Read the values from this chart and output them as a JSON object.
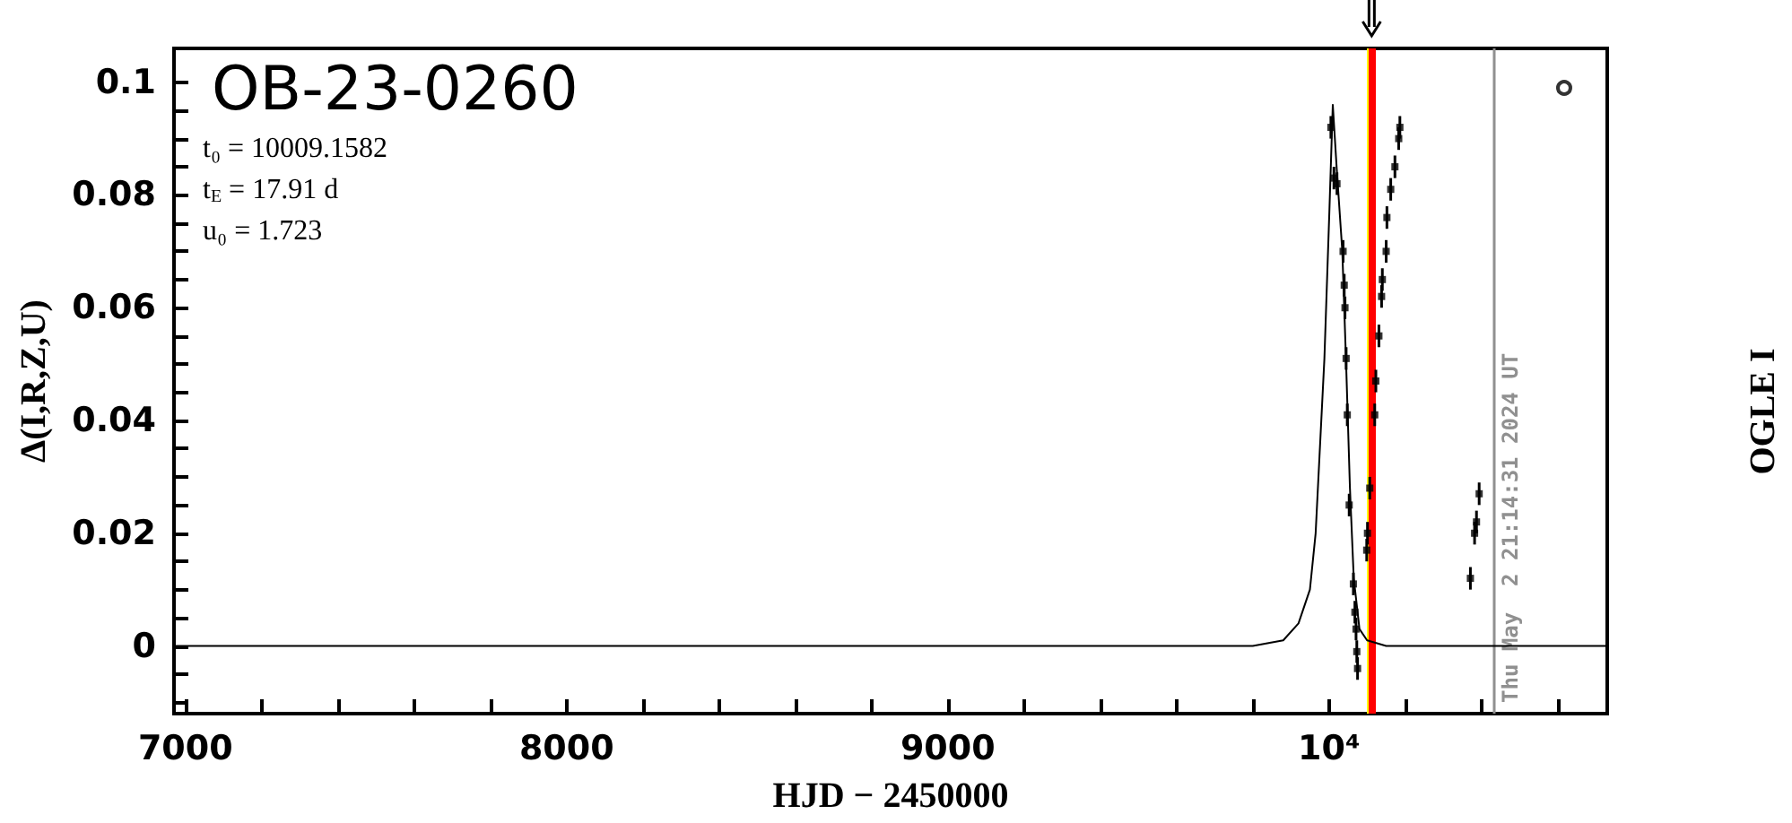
{
  "chart_data": {
    "type": "scatter",
    "title": "OB-23-0260",
    "xlabel": "HJD − 2450000",
    "ylabel": "Δ(I,R,Z,U)",
    "annotations": [
      "t₀ = 10009.1582",
      "t$_{E}$ = 17.91 d",
      "u₀ = 1.723",
      "OGLE I",
      "Thu May  2 21:14:31 2024 UT"
    ],
    "xlim": [
      6970,
      10730
    ],
    "ylim": [
      -0.012,
      0.106
    ],
    "xticks": [
      7000,
      {
        "value": 7200,
        "label": null
      },
      {
        "value": 7400,
        "label": null
      },
      {
        "value": 7600,
        "label": null
      },
      {
        "value": 7800,
        "label": null
      },
      8000,
      {
        "value": 8200,
        "label": null
      },
      {
        "value": 8400,
        "label": null
      },
      {
        "value": 8600,
        "label": null
      },
      {
        "value": 8800,
        "label": null
      },
      9000,
      {
        "value": 9200,
        "label": null
      },
      {
        "value": 9400,
        "label": null
      },
      {
        "value": 9600,
        "label": null
      },
      {
        "value": 9800,
        "label": null
      },
      {
        "value": 10000,
        "label": "10⁴"
      },
      {
        "value": 10200,
        "label": null
      },
      {
        "value": 10400,
        "label": null
      },
      {
        "value": 10600,
        "label": null
      }
    ],
    "yticks": [
      {
        "value": -0.01,
        "label": null
      },
      {
        "value": -0.005,
        "label": null
      },
      0,
      {
        "value": 0.005,
        "label": null
      },
      {
        "value": 0.01,
        "label": null
      },
      {
        "value": 0.015,
        "label": null
      },
      0.02,
      {
        "value": 0.025,
        "label": null
      },
      {
        "value": 0.03,
        "label": null
      },
      {
        "value": 0.035,
        "label": null
      },
      0.04,
      {
        "value": 0.045,
        "label": null
      },
      {
        "value": 0.05,
        "label": null
      },
      {
        "value": 0.055,
        "label": null
      },
      0.06,
      {
        "value": 0.065,
        "label": null
      },
      {
        "value": 0.07,
        "label": null
      },
      {
        "value": 0.075,
        "label": null
      },
      0.08,
      {
        "value": 0.085,
        "label": null
      },
      {
        "value": 0.09,
        "label": null
      },
      {
        "value": 0.095,
        "label": null
      },
      0.1
    ],
    "ref_lines": [
      {
        "axis": "x",
        "value": 10106,
        "color": "#ffff00"
      },
      {
        "axis": "x",
        "value": 10112,
        "color": "#ff0000"
      },
      {
        "axis": "x",
        "value": 10433.4,
        "color": "#909090"
      }
    ],
    "series": [
      {
        "type": "line",
        "color": "#000000",
        "marker": "none",
        "x": [
          6970,
          9800,
          9880,
          9920,
          9950,
          9965,
          9988,
          10001,
          10010,
          10020,
          10035,
          10045,
          10055,
          10065,
          10080,
          10100,
          10150,
          10730
        ],
        "values": [
          0,
          0,
          0.001,
          0.004,
          0.01,
          0.02,
          0.051,
          0.077,
          0.096,
          0.085,
          0.07,
          0.05,
          0.028,
          0.012,
          0.003,
          0.001,
          0,
          0
        ]
      },
      {
        "color": "#000000",
        "marker": "square",
        "x": [
          10005,
          10013,
          10021,
          10037,
          10040,
          10042,
          10045,
          10048,
          10053,
          10064,
          10068,
          10071,
          10073,
          10075,
          10099,
          10101,
          10107,
          10120,
          10123,
          10131,
          10138,
          10140,
          10150,
          10152,
          10162,
          10173,
          10183,
          10186,
          10371,
          10382,
          10387,
          10394
        ],
        "values": [
          0.092,
          0.083,
          0.082,
          0.07,
          0.064,
          0.06,
          0.051,
          0.041,
          0.025,
          0.011,
          0.006,
          0.003,
          -0.001,
          -0.004,
          0.017,
          0.02,
          0.028,
          0.041,
          0.047,
          0.055,
          0.062,
          0.065,
          0.07,
          0.076,
          0.081,
          0.085,
          0.09,
          0.092,
          0.012,
          0.02,
          0.022,
          0.027
        ],
        "errors": [
          0.002,
          0.002,
          0.002,
          0.002,
          0.002,
          0.002,
          0.002,
          0.002,
          0.002,
          0.002,
          0.002,
          0.002,
          0.002,
          0.002,
          0.002,
          0.002,
          0.002,
          0.002,
          0.002,
          0.002,
          0.002,
          0.002,
          0.002,
          0.002,
          0.002,
          0.002,
          0.002,
          0.002,
          0.002,
          0.002,
          0.002,
          0.002
        ]
      },
      {
        "color": "#000000",
        "marker": "circle",
        "x": [
          10617
        ],
        "values": [
          0.099
        ]
      }
    ]
  }
}
